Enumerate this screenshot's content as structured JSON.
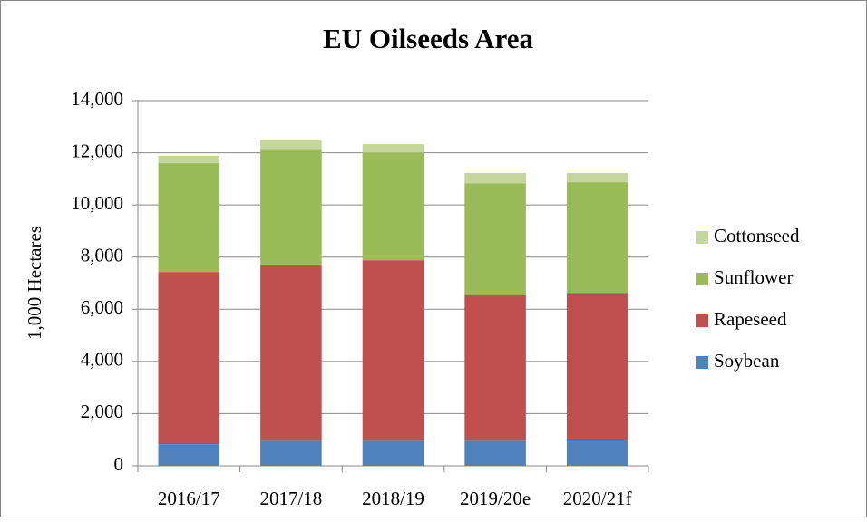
{
  "chart_data": {
    "type": "stacked_bar",
    "title": "EU Oilseeds Area",
    "y_label": "1,000 Hectares",
    "categories": [
      "2016/17",
      "2017/18",
      "2018/19",
      "2019/20e",
      "2020/21f"
    ],
    "series": [
      {
        "name": "Soybean",
        "color": "#4f81bd",
        "values": [
          830,
          960,
          960,
          960,
          980
        ]
      },
      {
        "name": "Rapeseed",
        "color": "#c0504d",
        "values": [
          6600,
          6750,
          6920,
          5570,
          5650
        ]
      },
      {
        "name": "Sunflower",
        "color": "#9bbb59",
        "values": [
          4170,
          4440,
          4130,
          4300,
          4240
        ]
      },
      {
        "name": "Cottonseed",
        "color": "#c3d69b",
        "values": [
          280,
          320,
          320,
          390,
          350
        ]
      }
    ],
    "ylim": [
      0,
      14000
    ],
    "yticks": [
      0,
      {
        "value": 2000,
        "label": "2,000"
      },
      {
        "value": 4000,
        "label": "4,000"
      },
      {
        "value": 6000,
        "label": "6,000"
      },
      {
        "value": 8000,
        "label": "8,000"
      },
      {
        "value": 10000,
        "label": "10,000"
      },
      {
        "value": 12000,
        "label": "12,000"
      },
      {
        "value": 14000,
        "label": "14,000"
      }
    ],
    "grid": true,
    "legend": "right"
  }
}
